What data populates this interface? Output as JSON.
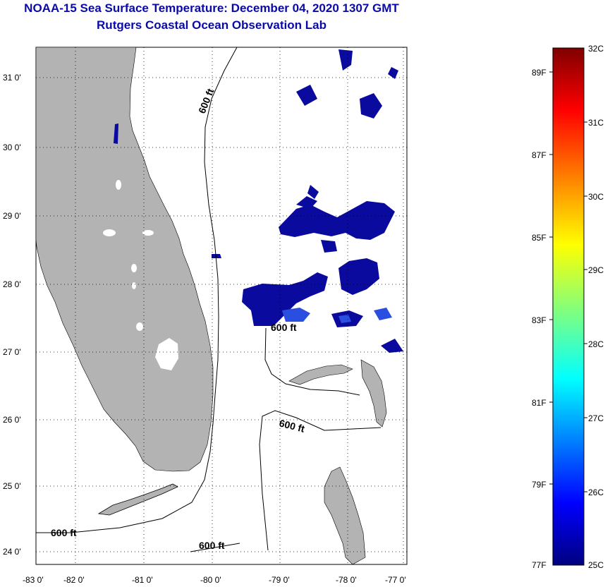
{
  "header": {
    "title": "NOAA-15 Sea Surface Temperature:  December 04, 2020 1307 GMT",
    "subtitle": "Rutgers Coastal Ocean Observation Lab"
  },
  "map": {
    "lat_labels": [
      "31 0'",
      "30 0'",
      "29 0'",
      "28 0'",
      "27 0'",
      "26 0'",
      "25 0'",
      "24 0'"
    ],
    "lon_labels": [
      "-83 0'",
      "-82 0'",
      "-81 0'",
      "-80 0'",
      "-79 0'",
      "-78 0'",
      "-77 0'"
    ],
    "isobath_labels": [
      "600 ft",
      "600 ft",
      "600 ft",
      "600 ft",
      "600 ft"
    ],
    "colors": {
      "land": "#b3b3b3",
      "ocean": "#ffffff",
      "sst_low": "#000080"
    }
  },
  "colorbar": {
    "celsius_labels": [
      "32C",
      "31C",
      "30C",
      "29C",
      "28C",
      "27C",
      "26C",
      "25C"
    ],
    "fahrenheit_labels": [
      "89F",
      "87F",
      "85F",
      "83F",
      "81F",
      "79F",
      "77F"
    ],
    "min_c": 25,
    "max_c": 32
  }
}
